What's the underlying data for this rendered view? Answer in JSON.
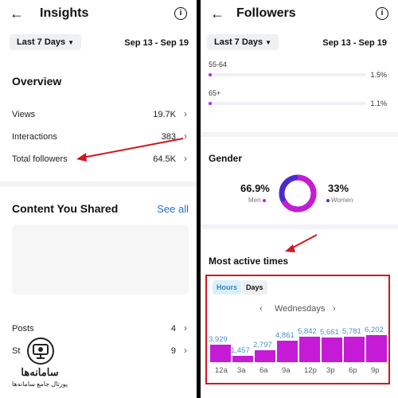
{
  "left": {
    "title": "Insights",
    "range_label": "Last 7 Days",
    "date_range": "Sep 13 - Sep 19",
    "overview": {
      "title": "Overview",
      "rows": [
        {
          "label": "Views",
          "value": "19.7K"
        },
        {
          "label": "Interactions",
          "value": "383"
        },
        {
          "label": "Total followers",
          "value": "64.5K"
        }
      ]
    },
    "content_shared": {
      "title": "Content You Shared",
      "see_all": "See all"
    },
    "stats": [
      {
        "label": "Posts",
        "value": "4"
      },
      {
        "label": "St",
        "value": "9"
      }
    ]
  },
  "right": {
    "title": "Followers",
    "range_label": "Last 7 Days",
    "date_range": "Sep 13 - Sep 19",
    "age": [
      {
        "label": "55-64",
        "value": "1.5%",
        "fraction": 0.015
      },
      {
        "label": "65+",
        "value": "1.1%",
        "fraction": 0.011
      }
    ],
    "gender": {
      "title": "Gender",
      "men_pct": "66.9%",
      "men_label": "Men",
      "women_pct": "33%",
      "women_label": "Women",
      "men_fraction": 0.669
    },
    "most_active": {
      "title": "Most active times",
      "tab_hours": "Hours",
      "tab_days": "Days",
      "day": "Wednesdays"
    }
  },
  "chart_data": {
    "type": "bar",
    "categories": [
      "12a",
      "3a",
      "6a",
      "9a",
      "12p",
      "3p",
      "6p",
      "9p"
    ],
    "values": [
      3929,
      1457,
      2797,
      4861,
      5842,
      5661,
      5781,
      6202
    ],
    "labels": [
      "3,929",
      "1,457",
      "2,797",
      "4,861",
      "5,842",
      "5,661",
      "5,781",
      "6,202"
    ],
    "ylim": [
      0,
      6202
    ]
  },
  "watermark": {
    "line1": "سامانه‌ها",
    "line2": "پورتال جامع سامانه‌ها"
  },
  "colors": {
    "accent": "#c51bd6",
    "women": "#4b2bd0",
    "link": "#1d6fe0",
    "annotation": "#d0181e"
  },
  "icons": {
    "back": "arrow-left-icon",
    "info": "info-icon",
    "chevron": "chevron-right-icon"
  }
}
